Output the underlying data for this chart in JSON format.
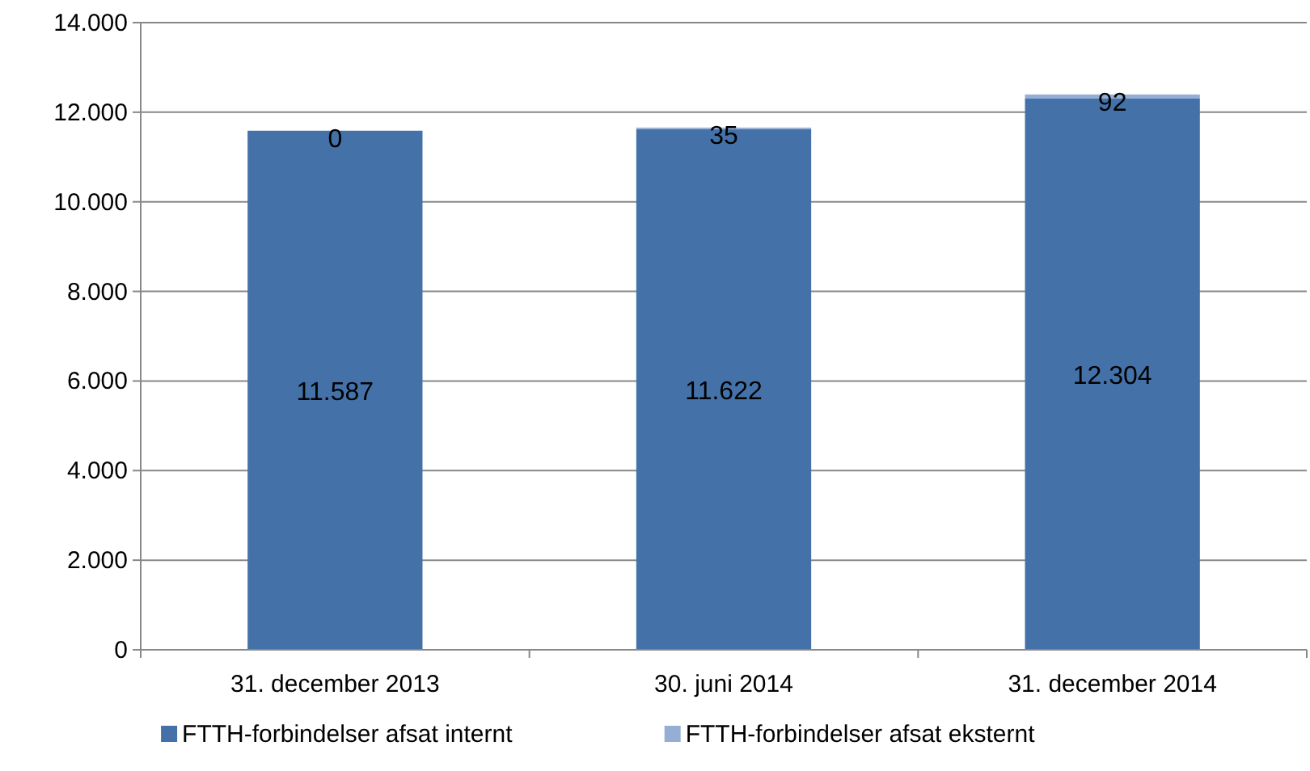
{
  "chart_data": {
    "type": "bar",
    "stacked": true,
    "categories": [
      "31. december 2013",
      "30. juni 2014",
      "31. december 2014"
    ],
    "series": [
      {
        "name": "FTTH-forbindelser afsat internt",
        "color": "#4472a8",
        "values": [
          11587,
          11622,
          12304
        ],
        "value_labels": [
          "11.587",
          "11.622",
          "12.304"
        ]
      },
      {
        "name": "FTTH-forbindelser afsat eksternt",
        "color": "#95aed6",
        "values": [
          0,
          35,
          92
        ],
        "value_labels": [
          "0",
          "35",
          "92"
        ]
      }
    ],
    "ylim": [
      0,
      14000
    ],
    "yticks": [
      {
        "value": 0,
        "label": "0"
      },
      {
        "value": 2000,
        "label": "2.000"
      },
      {
        "value": 4000,
        "label": "4.000"
      },
      {
        "value": 6000,
        "label": "6.000"
      },
      {
        "value": 8000,
        "label": "8.000"
      },
      {
        "value": 10000,
        "label": "10.000"
      },
      {
        "value": 12000,
        "label": "12.000"
      },
      {
        "value": 14000,
        "label": "14.000"
      }
    ],
    "grid": "y",
    "legend": "bottom"
  }
}
